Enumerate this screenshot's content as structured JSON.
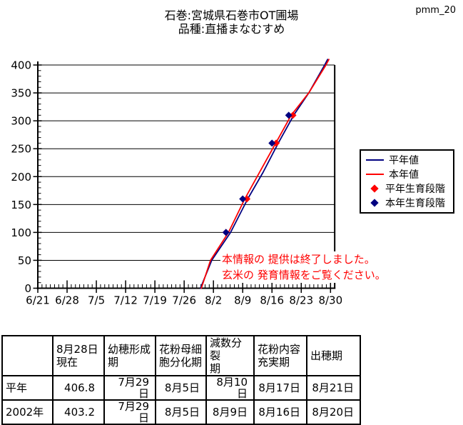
{
  "page": {
    "code": "pmm_20",
    "title_line1": "石巻:宮城県石巻市OT圃場",
    "title_line2": "品種:直播まなむすめ"
  },
  "chart_data": {
    "type": "line",
    "title": "石巻:宮城県石巻市OT圃場 品種:直播まなむすめ",
    "x_axis": {
      "tick_labels": [
        "6/21",
        "6/28",
        "7/5",
        "7/12",
        "7/19",
        "7/26",
        "8/2",
        "8/9",
        "8/16",
        "8/23",
        "8/30"
      ],
      "major_tick_interval_days": 7,
      "minor_tick_interval_days": 1,
      "start_date": "6/21",
      "end_day_offset": 71
    },
    "y_axis": {
      "min": 0,
      "max": 400,
      "major_interval": 50,
      "minor_interval": 10,
      "tick_labels": [
        "0",
        "50",
        "100",
        "150",
        "200",
        "250",
        "300",
        "350",
        "400"
      ]
    },
    "grid": "horizontal-major-only",
    "series": [
      {
        "name": "平年値",
        "kind": "line",
        "color": "#000080",
        "points_day_value": [
          [
            38.9,
            0
          ],
          [
            41.6,
            50
          ],
          [
            46.1,
            100
          ],
          [
            50.2,
            160
          ],
          [
            53.9,
            208
          ],
          [
            57.5,
            260
          ],
          [
            61.2,
            310
          ],
          [
            64.8,
            350
          ],
          [
            68.6,
            400
          ],
          [
            69.3,
            410
          ]
        ]
      },
      {
        "name": "本年値",
        "kind": "line",
        "color": "#ff0000",
        "points_day_value": [
          [
            39.1,
            0
          ],
          [
            41.3,
            50
          ],
          [
            45.6,
            100
          ],
          [
            49.5,
            160
          ],
          [
            53.2,
            210
          ],
          [
            56.9,
            260
          ],
          [
            60.6,
            310
          ],
          [
            64.8,
            350
          ],
          [
            68.9,
            400
          ],
          [
            69.6,
            410
          ]
        ]
      },
      {
        "name": "平年生育段階",
        "kind": "scatter",
        "marker": "diamond",
        "color": "#ff0000",
        "points_date_value": [
          [
            "8/5",
            100
          ],
          [
            "8/10",
            160
          ],
          [
            "8/17",
            260
          ],
          [
            "8/21",
            310
          ]
        ]
      },
      {
        "name": "本年生育段階",
        "kind": "scatter",
        "marker": "diamond",
        "color": "#000080",
        "points_date_value": [
          [
            "8/5",
            100
          ],
          [
            "8/9",
            160
          ],
          [
            "8/16",
            260
          ],
          [
            "8/20",
            310
          ]
        ]
      }
    ],
    "legend": {
      "position": "right",
      "items": [
        {
          "label": "平年値",
          "swatch": "line",
          "color": "#000080"
        },
        {
          "label": "本年値",
          "swatch": "line",
          "color": "#ff0000"
        },
        {
          "label": "平年生育段階",
          "swatch": "diamond",
          "color": "#ff0000"
        },
        {
          "label": "本年生育段階",
          "swatch": "diamond",
          "color": "#000080"
        }
      ]
    },
    "annotation": {
      "color": "#ff0000",
      "lines": [
        "本情報の 提供は終了しました。",
        "玄米の 発育情報をご覧ください。"
      ]
    }
  },
  "table": {
    "headers": [
      "",
      "8月28日\n現在",
      "幼穂形成\n期",
      "花粉母細\n胞分化期",
      "減数分裂\n期",
      "花粉内容\n充実期",
      "出穂期"
    ],
    "rows": [
      {
        "label": "平年",
        "values": [
          "406.8",
          "7月29日",
          "8月5日",
          "8月10日",
          "8月17日",
          "8月21日"
        ]
      },
      {
        "label": "2002年",
        "values": [
          "403.2",
          "7月29日",
          "8月5日",
          "8月9日",
          "8月16日",
          "8月20日"
        ]
      }
    ]
  },
  "colors": {
    "axis": "#000000",
    "grid": "#000000",
    "normal_year": "#000080",
    "this_year": "#ff0000",
    "annotation": "#ff0000",
    "background": "#ffffff"
  }
}
